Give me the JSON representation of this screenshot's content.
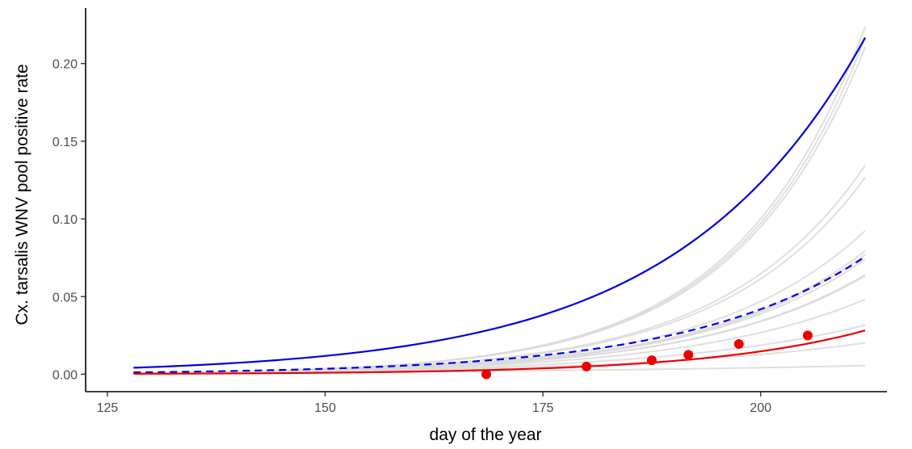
{
  "chart_data": {
    "type": "line",
    "title": "",
    "xlabel": "day of the year",
    "ylabel": "Cx. tarsalis WNV pool positive rate",
    "xlim": [
      122.5,
      214.5
    ],
    "ylim": [
      -0.0112,
      0.2357
    ],
    "x_ticks": [
      125,
      150,
      175,
      200
    ],
    "x_tick_labels": [
      "125",
      "150",
      "175",
      "200"
    ],
    "y_ticks": [
      0.0,
      0.05,
      0.1,
      0.15,
      0.2
    ],
    "y_tick_labels": [
      "0.00",
      "0.05",
      "0.10",
      "0.15",
      "0.20"
    ],
    "grid": false,
    "colors": {
      "background_lines": "#d9d9d9",
      "upper_line": "#0000dd",
      "dashed_line": "#0000dd",
      "fitted_line": "#ee0000",
      "points": "#ee0000",
      "axis": "#000000"
    },
    "curve_range": [
      128,
      212
    ],
    "background_curves_end_values": [
      0.2237,
      0.2166,
      0.2105,
      0.1345,
      0.1266,
      0.0924,
      0.0794,
      0.0771,
      0.0741,
      0.0641,
      0.0634,
      0.0482,
      0.0316,
      0.0202,
      0.0056
    ],
    "background_curves_start_value": 0.0008,
    "series": [
      {
        "style": "solid",
        "color": "#0000dd",
        "start_value": 0.0042,
        "end_value": 0.2167
      },
      {
        "style": "dashed",
        "color": "#0000dd",
        "start_value": 0.0012,
        "end_value": 0.0757
      },
      {
        "style": "solid",
        "color": "#ee0000",
        "start_value": 0.0003,
        "end_value": 0.0282
      }
    ],
    "points": {
      "x": [
        168.5,
        180.0,
        187.5,
        191.7,
        197.5,
        205.4
      ],
      "y": [
        0.0,
        0.005,
        0.009,
        0.0125,
        0.0195,
        0.025
      ]
    }
  }
}
